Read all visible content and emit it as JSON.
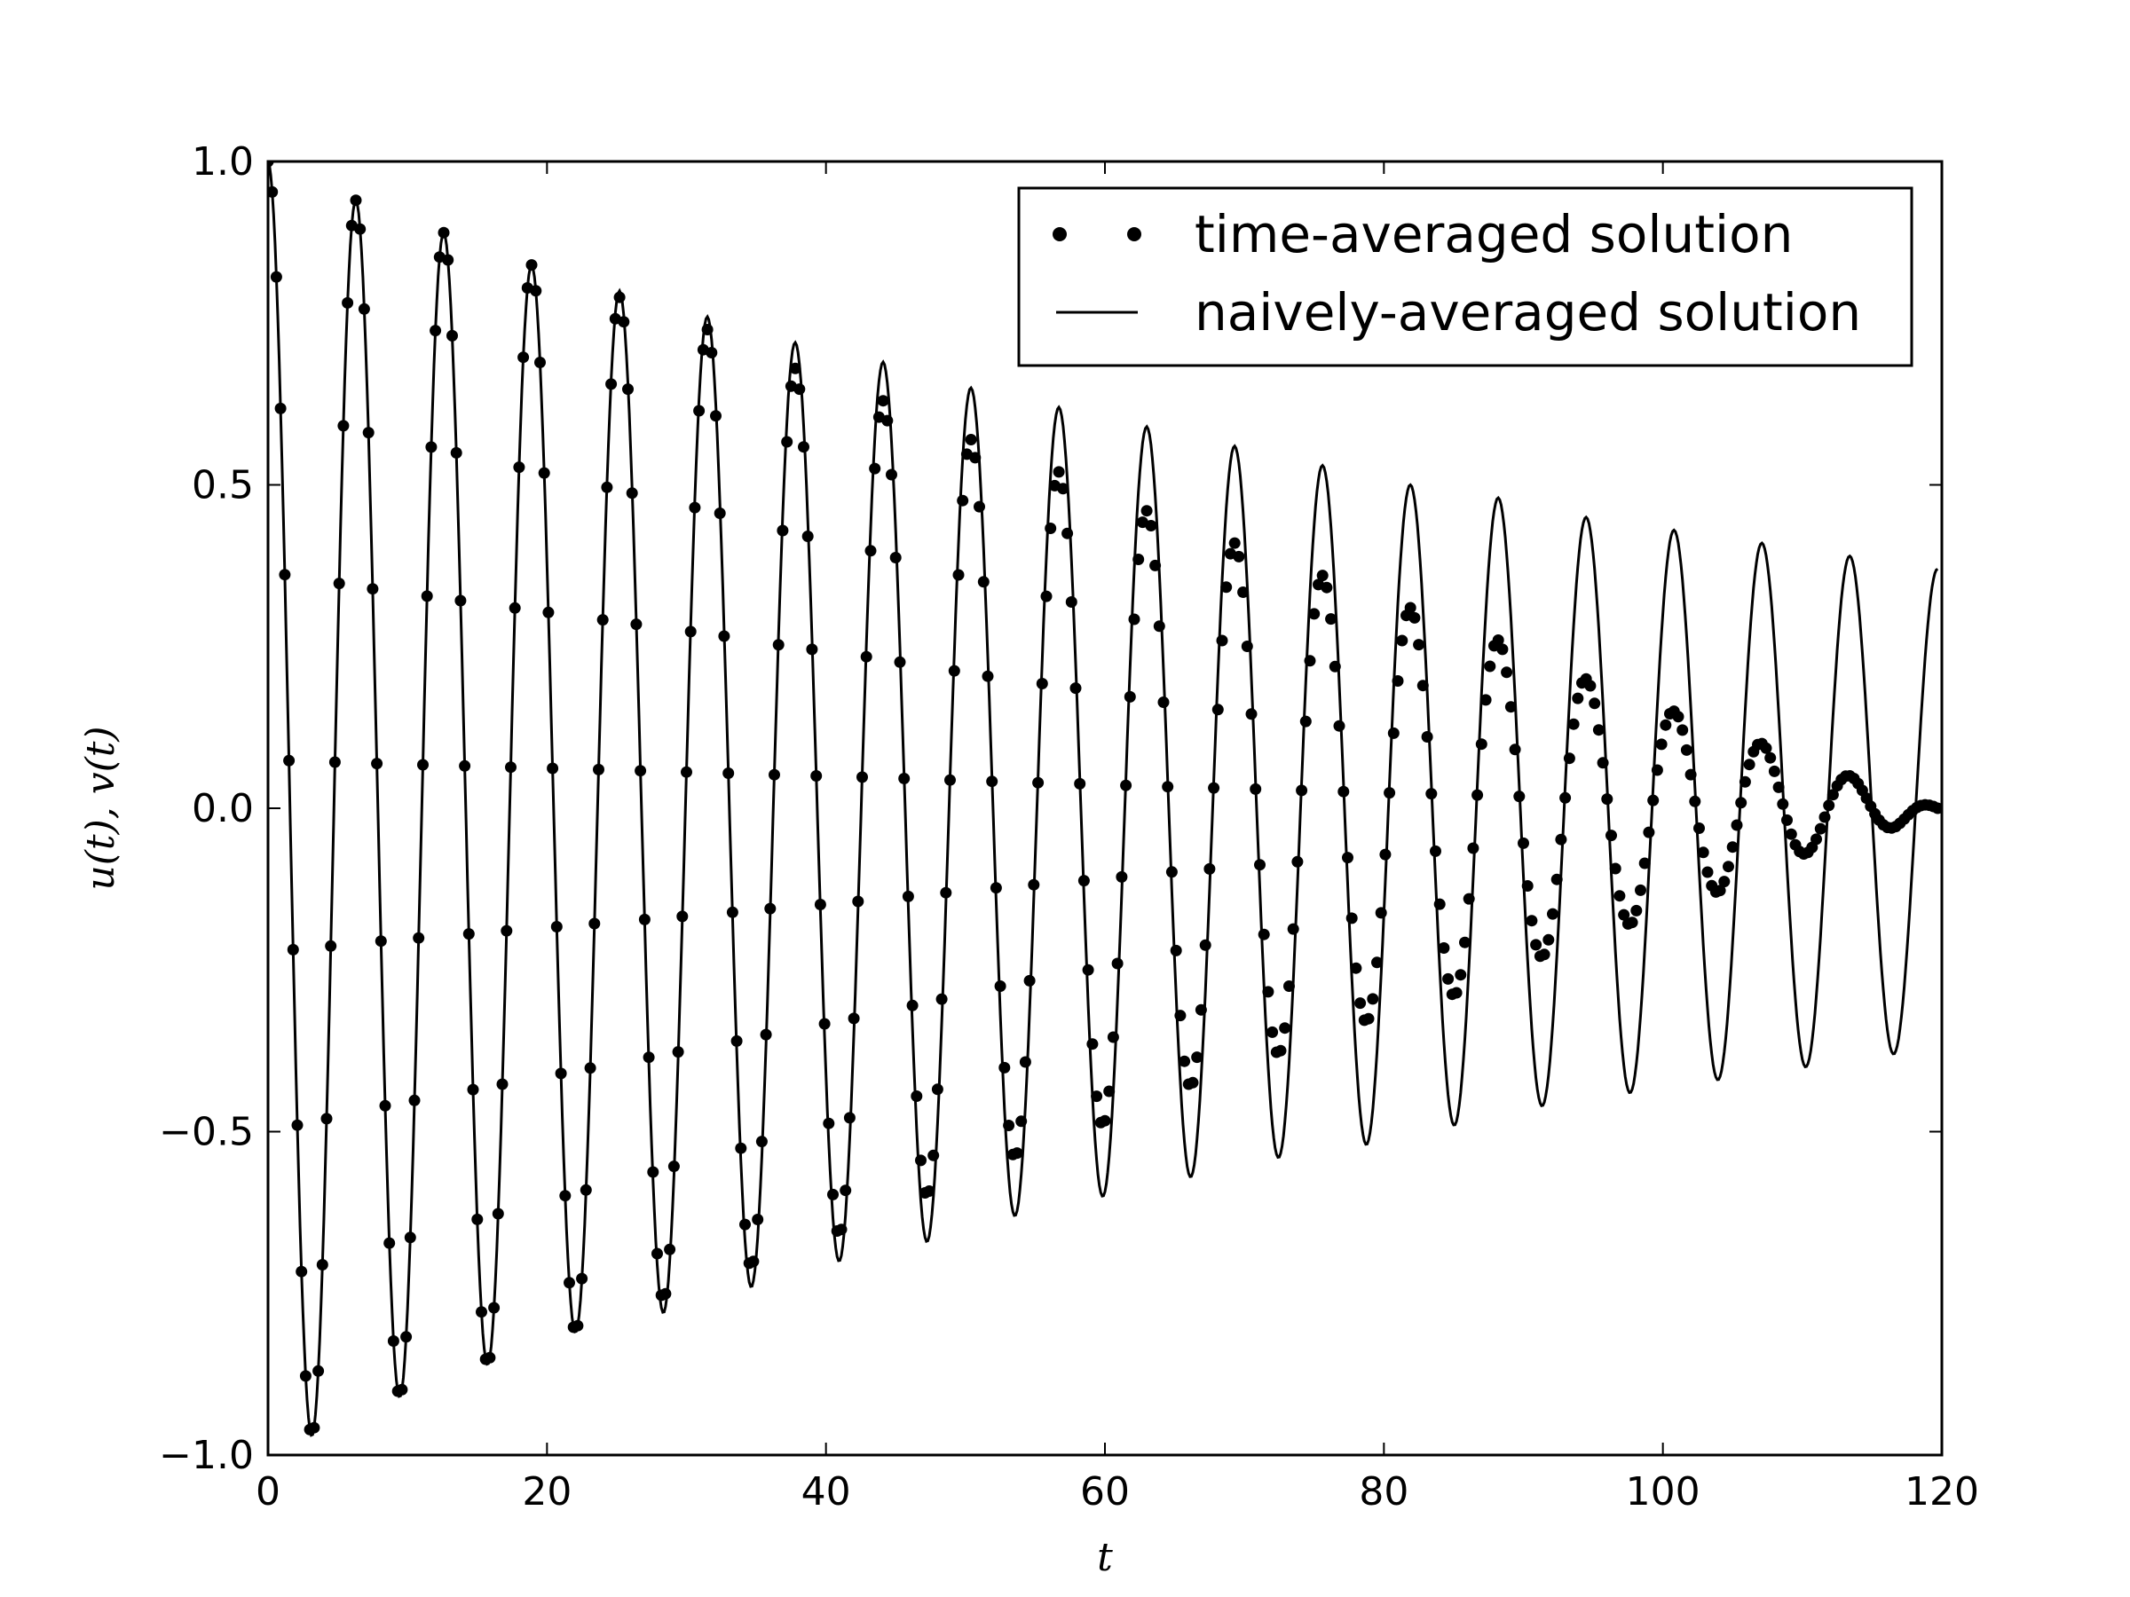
{
  "chart_data": {
    "type": "line",
    "title": "",
    "xlabel": "t",
    "ylabel": "u(t), v(t)",
    "xlim": [
      0,
      120
    ],
    "ylim": [
      -1.0,
      1.0
    ],
    "xticks": [
      0,
      20,
      40,
      60,
      80,
      100,
      120
    ],
    "xtick_labels": [
      "0",
      "20",
      "40",
      "60",
      "80",
      "100",
      "120"
    ],
    "yticks": [
      -1.0,
      -0.5,
      0.0,
      0.5,
      1.0
    ],
    "ytick_labels": [
      "−1.0",
      "−0.5",
      "0.0",
      "0.5",
      "1.0"
    ],
    "grid": false,
    "legend": {
      "location": "top-right",
      "entries": [
        "time-averaged solution",
        "naively-averaged solution"
      ]
    },
    "series": [
      {
        "name": "time-averaged solution",
        "marker": "dots",
        "color": "#000000",
        "sample_dt": 0.3,
        "x": [
          0,
          3.15,
          6.3,
          9.45,
          12.6,
          15.75,
          18.9,
          22.05,
          25.2,
          28.35,
          31.5,
          34.65,
          37.8,
          40.95,
          44.1,
          47.25,
          50.4,
          53.55,
          56.7,
          59.85,
          63.0,
          66.15,
          69.3,
          72.45,
          75.6,
          78.75,
          81.9,
          85.05,
          88.2,
          91.35,
          94.5,
          97.65,
          100.8,
          103.95,
          107.1,
          110.25,
          113.4,
          116.55,
          119.7
        ],
        "y": [
          1.0,
          -0.97,
          0.94,
          -0.91,
          0.89,
          -0.86,
          0.84,
          -0.81,
          0.79,
          -0.76,
          0.74,
          -0.71,
          0.68,
          -0.66,
          0.63,
          -0.6,
          0.57,
          -0.54,
          0.52,
          -0.49,
          0.46,
          -0.43,
          0.41,
          -0.38,
          0.36,
          -0.33,
          0.31,
          -0.29,
          0.26,
          -0.23,
          0.2,
          -0.18,
          0.15,
          -0.13,
          0.1,
          -0.07,
          0.05,
          -0.03,
          0.0
        ]
      },
      {
        "name": "naively-averaged solution",
        "marker": "line",
        "color": "#000000",
        "x": [
          0,
          3.15,
          6.3,
          9.45,
          12.6,
          15.75,
          18.9,
          22.05,
          25.2,
          28.35,
          31.5,
          34.65,
          37.8,
          40.95,
          44.1,
          47.25,
          50.4,
          53.55,
          56.7,
          59.85,
          63.0,
          66.15,
          69.3,
          72.45,
          75.6,
          78.75,
          81.9,
          85.05,
          88.2,
          91.35,
          94.5,
          97.65,
          100.8,
          103.95,
          107.1,
          110.25,
          113.4,
          116.55,
          119.7
        ],
        "y": [
          1.0,
          -0.97,
          0.94,
          -0.91,
          0.89,
          -0.86,
          0.84,
          -0.81,
          0.8,
          -0.78,
          0.76,
          -0.74,
          0.72,
          -0.7,
          0.69,
          -0.67,
          0.65,
          -0.63,
          0.62,
          -0.6,
          0.59,
          -0.57,
          0.56,
          -0.54,
          0.53,
          -0.52,
          0.5,
          -0.49,
          0.48,
          -0.46,
          0.45,
          -0.44,
          0.43,
          -0.42,
          0.41,
          -0.4,
          0.39,
          -0.38,
          0.37
        ]
      }
    ]
  }
}
